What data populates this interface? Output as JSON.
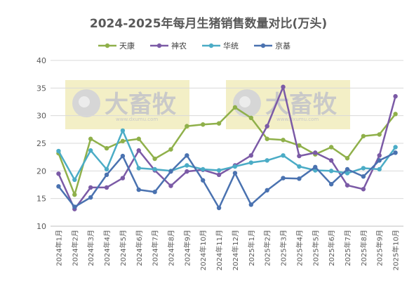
{
  "chart_data": {
    "type": "line",
    "title": "2024-2025年每月生猪销售数量对比(万头)",
    "xlabel": "",
    "ylabel": "",
    "ylim": [
      10,
      40
    ],
    "yticks": [
      10,
      15,
      20,
      25,
      30,
      35,
      40
    ],
    "grid": true,
    "legend_position": "top",
    "categories": [
      "2024年1月",
      "2024年2月",
      "2024年3月",
      "2024年4月",
      "2024年5月",
      "2024年6月",
      "2024年7月",
      "2024年8月",
      "2024年9月",
      "2024年10月",
      "2024年11月",
      "2024年12月",
      "2025年1月",
      "2025年2月",
      "2025年3月",
      "2025年4月",
      "2025年5月",
      "2025年6月",
      "2025年7月",
      "2025年8月",
      "2025年9月",
      "2025年10月"
    ],
    "series": [
      {
        "name": "天康",
        "color": "#8fb04a",
        "values": [
          23.2,
          15.7,
          25.8,
          24.1,
          25.4,
          25.8,
          22.2,
          23.9,
          28.1,
          28.4,
          28.6,
          31.5,
          29.6,
          25.8,
          25.6,
          24.6,
          23.0,
          24.3,
          22.3,
          26.3,
          26.6,
          30.3
        ]
      },
      {
        "name": "神农",
        "color": "#7b5aa6",
        "values": [
          19.5,
          13.1,
          17.0,
          17.0,
          18.7,
          23.7,
          20.1,
          17.3,
          19.9,
          20.2,
          19.3,
          21.0,
          22.8,
          28.1,
          35.2,
          22.7,
          23.3,
          21.9,
          17.4,
          16.7,
          22.8,
          33.5
        ]
      },
      {
        "name": "华统",
        "color": "#4bacc6",
        "values": [
          23.6,
          18.4,
          23.7,
          20.3,
          27.3,
          20.5,
          20.3,
          20.0,
          21.0,
          20.3,
          20.1,
          20.8,
          21.5,
          21.9,
          22.8,
          20.8,
          20.1,
          20.0,
          19.6,
          20.5,
          20.3,
          24.3
        ]
      },
      {
        "name": "京基",
        "color": "#4a72b0",
        "values": [
          17.2,
          13.5,
          15.2,
          19.3,
          22.7,
          16.6,
          16.2,
          19.9,
          22.8,
          18.3,
          13.3,
          19.6,
          13.9,
          16.5,
          18.7,
          18.6,
          20.7,
          17.6,
          20.3,
          19.0,
          21.9,
          23.3
        ]
      }
    ]
  },
  "watermark": {
    "text": "大畜牧",
    "subtext": "www.dxumu.com",
    "color": "#f3efc6"
  }
}
